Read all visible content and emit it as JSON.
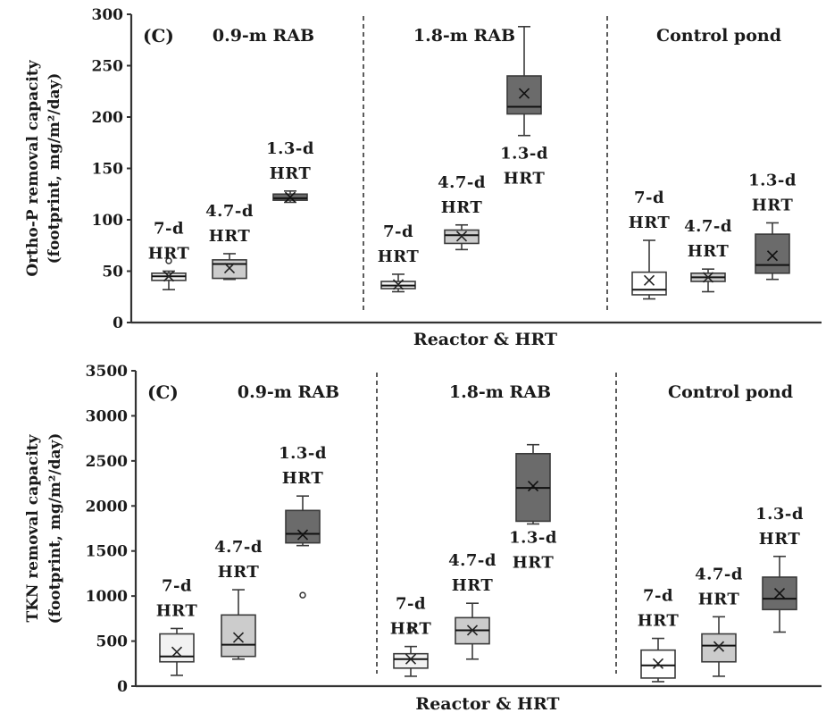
{
  "chart_data": [
    {
      "type": "box",
      "panel_label": "(C)",
      "ylabel": "Ortho-P removal capacity",
      "ylabel_sub": "(footprint, mg/m²/day)",
      "xlabel": "Reactor & HRT",
      "ylim": [
        0,
        300
      ],
      "yticks": [
        0,
        50,
        100,
        150,
        200,
        250,
        300
      ],
      "groups": [
        {
          "name": "0.9-m RAB",
          "boxes": [
            {
              "hrt_line1": "7-d",
              "hrt_line2": "HRT",
              "fill": "#f2f2f2",
              "whisker_low": 32,
              "q1": 41,
              "median": 45,
              "q3": 48,
              "whisker_high": 50,
              "mean": 45,
              "outliers": [
                60
              ]
            },
            {
              "hrt_line1": "4.7-d",
              "hrt_line2": "HRT",
              "fill": "#cccccc",
              "whisker_low": 42,
              "q1": 43,
              "median": 57,
              "q3": 61,
              "whisker_high": 67,
              "mean": 53,
              "outliers": []
            },
            {
              "hrt_line1": "1.3-d",
              "hrt_line2": "HRT",
              "fill": "#6b6b6b",
              "whisker_low": 117,
              "q1": 119,
              "median": 121,
              "q3": 125,
              "whisker_high": 128,
              "mean": 122,
              "outliers": []
            }
          ]
        },
        {
          "name": "1.8-m RAB",
          "boxes": [
            {
              "hrt_line1": "7-d",
              "hrt_line2": "HRT",
              "fill": "#f2f2f2",
              "whisker_low": 30,
              "q1": 33,
              "median": 36,
              "q3": 40,
              "whisker_high": 47,
              "mean": 37,
              "outliers": []
            },
            {
              "hrt_line1": "4.7-d",
              "hrt_line2": "HRT",
              "fill": "#cccccc",
              "whisker_low": 71,
              "q1": 77,
              "median": 85,
              "q3": 90,
              "whisker_high": 95,
              "mean": 84,
              "outliers": []
            },
            {
              "hrt_line1": "1.3-d",
              "hrt_line2": "HRT",
              "fill": "#6b6b6b",
              "whisker_low": 182,
              "q1": 203,
              "median": 210,
              "q3": 240,
              "whisker_high": 288,
              "mean": 223,
              "outliers": []
            }
          ]
        },
        {
          "name": "Control pond",
          "boxes": [
            {
              "hrt_line1": "7-d",
              "hrt_line2": "HRT",
              "fill": "#ffffff",
              "whisker_low": 23,
              "q1": 27,
              "median": 32,
              "q3": 49,
              "whisker_high": 80,
              "mean": 41,
              "outliers": []
            },
            {
              "hrt_line1": "4.7-d",
              "hrt_line2": "HRT",
              "fill": "#cccccc",
              "whisker_low": 30,
              "q1": 40,
              "median": 44,
              "q3": 48,
              "whisker_high": 52,
              "mean": 44,
              "outliers": []
            },
            {
              "hrt_line1": "1.3-d",
              "hrt_line2": "HRT",
              "fill": "#6b6b6b",
              "whisker_low": 42,
              "q1": 48,
              "median": 56,
              "q3": 86,
              "whisker_high": 97,
              "mean": 65,
              "outliers": []
            }
          ]
        }
      ]
    },
    {
      "type": "box",
      "panel_label": "(C)",
      "ylabel": "TKN removal capacity",
      "ylabel_sub": "(footprint, mg/m²/day)",
      "xlabel": "Reactor & HRT",
      "ylim": [
        0,
        3500
      ],
      "yticks": [
        0,
        500,
        1000,
        1500,
        2000,
        2500,
        3000,
        3500
      ],
      "groups": [
        {
          "name": "0.9-m RAB",
          "boxes": [
            {
              "hrt_line1": "7-d",
              "hrt_line2": "HRT",
              "fill": "#f2f2f2",
              "whisker_low": 120,
              "q1": 270,
              "median": 330,
              "q3": 580,
              "whisker_high": 640,
              "mean": 380,
              "outliers": []
            },
            {
              "hrt_line1": "4.7-d",
              "hrt_line2": "HRT",
              "fill": "#cccccc",
              "whisker_low": 300,
              "q1": 330,
              "median": 460,
              "q3": 790,
              "whisker_high": 1070,
              "mean": 540,
              "outliers": []
            },
            {
              "hrt_line1": "1.3-d",
              "hrt_line2": "HRT",
              "fill": "#6b6b6b",
              "whisker_low": 1560,
              "q1": 1590,
              "median": 1690,
              "q3": 1950,
              "whisker_high": 2110,
              "mean": 1680,
              "outliers": [
                1010
              ]
            }
          ]
        },
        {
          "name": "1.8-m RAB",
          "boxes": [
            {
              "hrt_line1": "7-d",
              "hrt_line2": "HRT",
              "fill": "#f2f2f2",
              "whisker_low": 110,
              "q1": 200,
              "median": 300,
              "q3": 360,
              "whisker_high": 440,
              "mean": 300,
              "outliers": [
                630
              ]
            },
            {
              "hrt_line1": "4.7-d",
              "hrt_line2": "HRT",
              "fill": "#cccccc",
              "whisker_low": 300,
              "q1": 470,
              "median": 620,
              "q3": 760,
              "whisker_high": 920,
              "mean": 620,
              "outliers": []
            },
            {
              "hrt_line1": "1.3-d",
              "hrt_line2": "HRT",
              "fill": "#6b6b6b",
              "whisker_low": 1800,
              "q1": 1830,
              "median": 2200,
              "q3": 2580,
              "whisker_high": 2680,
              "mean": 2220,
              "outliers": []
            }
          ]
        },
        {
          "name": "Control pond",
          "boxes": [
            {
              "hrt_line1": "7-d",
              "hrt_line2": "HRT",
              "fill": "#ffffff",
              "whisker_low": 50,
              "q1": 90,
              "median": 230,
              "q3": 400,
              "whisker_high": 530,
              "mean": 250,
              "outliers": []
            },
            {
              "hrt_line1": "4.7-d",
              "hrt_line2": "HRT",
              "fill": "#cccccc",
              "whisker_low": 110,
              "q1": 270,
              "median": 450,
              "q3": 580,
              "whisker_high": 770,
              "mean": 440,
              "outliers": []
            },
            {
              "hrt_line1": "1.3-d",
              "hrt_line2": "HRT",
              "fill": "#6b6b6b",
              "whisker_low": 600,
              "q1": 850,
              "median": 970,
              "q3": 1210,
              "whisker_high": 1440,
              "mean": 1030,
              "outliers": []
            }
          ]
        }
      ]
    }
  ]
}
